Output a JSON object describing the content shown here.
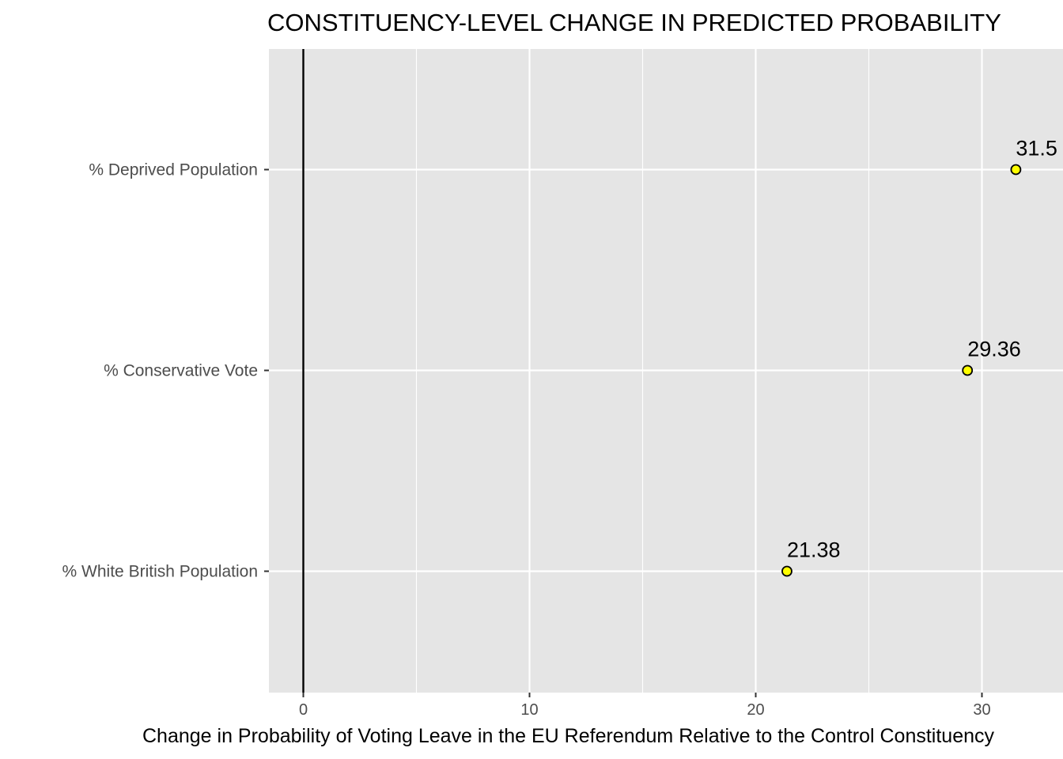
{
  "chart_data": {
    "type": "scatter",
    "title": "CONSTITUENCY-LEVEL CHANGE IN PREDICTED PROBABILITY",
    "xlabel": "Change in Probability of Voting Leave in the EU Referendum Relative to the Control Constituency",
    "ylabel": "",
    "xlim": [
      -1.5,
      32.5
    ],
    "xticks": [
      0,
      10,
      20,
      30
    ],
    "grid": true,
    "reference_line_x": 0,
    "categories": [
      "% Deprived Population",
      "% Conservative Vote",
      "% White British Population"
    ],
    "values": [
      31.5,
      29.36,
      21.38
    ],
    "labels": [
      "31.5",
      "29.36",
      "21.38"
    ],
    "point_fill": "#ffff00",
    "point_stroke": "#000000",
    "panel_background": "#e5e5e5"
  }
}
